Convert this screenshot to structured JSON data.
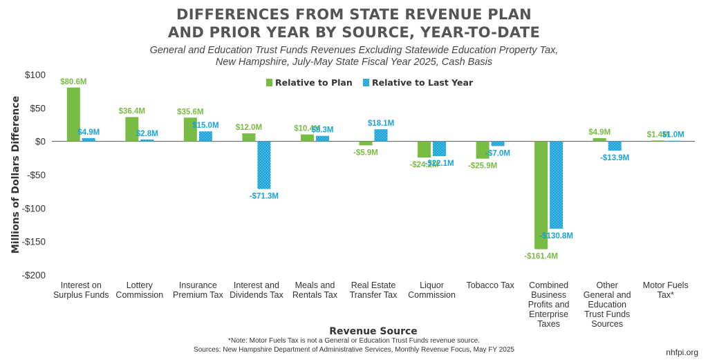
{
  "title_line1": "DIFFERENCES FROM STATE REVENUE PLAN",
  "title_line2": "AND PRIOR YEAR BY SOURCE, YEAR-TO-DATE",
  "subtitle_line1": "General and Education Trust Funds Revenues Excluding Statewide Education Property Tax,",
  "subtitle_line2": "New Hampshire, July-May State Fiscal Year 2025, Cash Basis",
  "note": "*Note: Motor Fuels Tax is not a General or Education Trust Funds revenue source.",
  "sources": "Sources: New Hampshire Department of Administrative Services, Monthly Revenue Focus, May FY 2025",
  "credit": "nhfpi.org",
  "colors": {
    "plan": "#79bc43",
    "last_year": "#1aa3d9",
    "axis_text": "#333333"
  },
  "chart_data": {
    "type": "bar",
    "xlabel": "Revenue Source",
    "ylabel": "Millions of Dollars Difference",
    "ylim": [
      -200,
      100
    ],
    "yticks": [
      100,
      50,
      0,
      -50,
      -100,
      -150,
      -200
    ],
    "ytick_labels": [
      "$100",
      "$50",
      "$0",
      "-$50",
      "-$100",
      "-$150",
      "-$200"
    ],
    "legend_position": "top-center",
    "grid": false,
    "categories": [
      [
        "Interest on",
        "Surplus Funds"
      ],
      [
        "Lottery",
        "Commission"
      ],
      [
        "Insurance",
        "Premium Tax"
      ],
      [
        "Interest and",
        "Dividends Tax"
      ],
      [
        "Meals and",
        "Rentals Tax"
      ],
      [
        "Real Estate",
        "Transfer Tax"
      ],
      [
        "Liquor",
        "Commission"
      ],
      [
        "Tobacco Tax"
      ],
      [
        "Combined",
        "Business",
        "Profits and",
        "Enterprise",
        "Taxes"
      ],
      [
        "Other",
        "General and",
        "Education",
        "Trust Funds",
        "Sources"
      ],
      [
        "Motor Fuels",
        "Tax*"
      ]
    ],
    "series": [
      {
        "name": "Relative to Plan",
        "values": [
          80.6,
          36.4,
          35.6,
          12.0,
          10.4,
          -5.9,
          -24.2,
          -25.9,
          -161.4,
          4.9,
          1.4
        ],
        "labels": [
          "$80.6M",
          "$36.4M",
          "$35.6M",
          "$12.0M",
          "$10.4M",
          "-$5.9M",
          "-$24.2M",
          "-$25.9M",
          "-$161.4M",
          "$4.9M",
          "$1.4M"
        ]
      },
      {
        "name": "Relative to Last Year",
        "values": [
          4.9,
          2.8,
          15.0,
          -71.3,
          8.3,
          18.1,
          -22.1,
          -7.0,
          -130.8,
          -13.9,
          1.0
        ],
        "labels": [
          "$4.9M",
          "$2.8M",
          "$15.0M",
          "-$71.3M",
          "$8.3M",
          "$18.1M",
          "-$22.1M",
          "-$7.0M",
          "-$130.8M",
          "-$13.9M",
          "$1.0M"
        ]
      }
    ]
  }
}
